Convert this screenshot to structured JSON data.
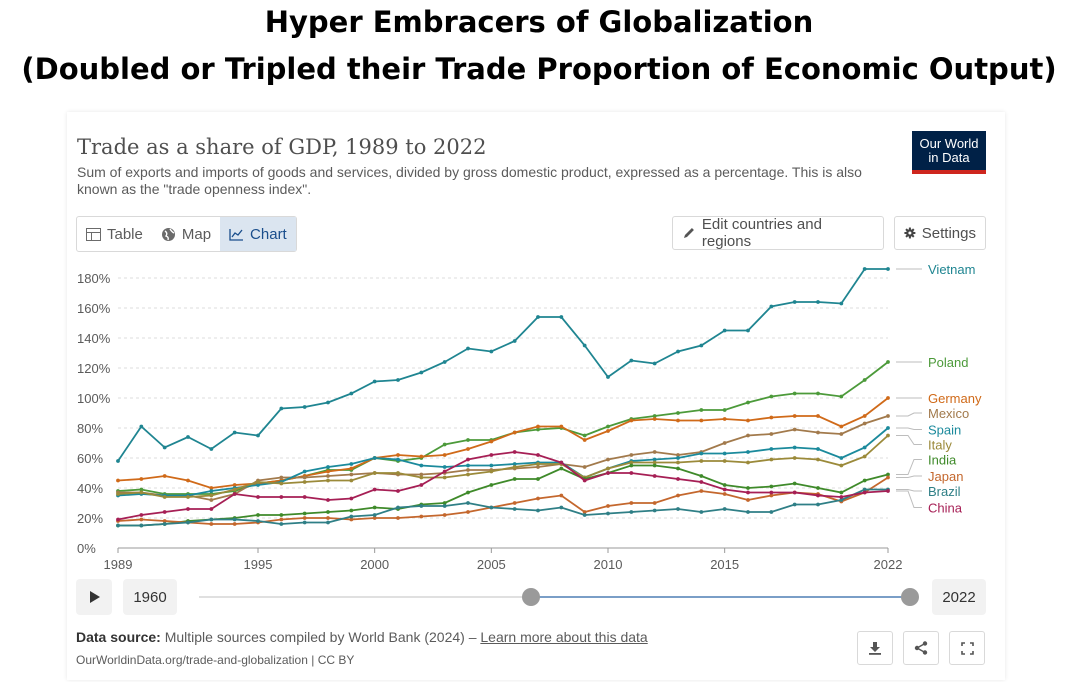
{
  "headline": {
    "line1": "Hyper Embracers of Globalization",
    "line2": "(Doubled or Tripled their Trade Proportion of Economic Output)"
  },
  "card": {
    "title": "Trade as a share of GDP, 1989 to 2022",
    "subtitle": "Sum of exports and imports of goods and services, divided by gross domestic product, expressed as a percentage. This is also known as the \"trade openness index\".",
    "logo_line1": "Our World",
    "logo_line2": "in Data"
  },
  "tabs": [
    {
      "label": "Table",
      "icon": "table-icon"
    },
    {
      "label": "Map",
      "icon": "globe-icon"
    },
    {
      "label": "Chart",
      "icon": "line-chart-icon"
    }
  ],
  "buttons": {
    "edit": "Edit countries and regions",
    "settings": "Settings"
  },
  "timeline": {
    "start": "1960",
    "end": "2022"
  },
  "footer": {
    "source_label": "Data source:",
    "source_text": "Multiple sources compiled by World Bank (2024) –",
    "learn_more": "Learn more about this data",
    "url": "OurWorldinData.org/trade-and-globalization | CC BY"
  },
  "colors": {
    "Vietnam": "#1f8591",
    "Poland": "#4c9a3a",
    "Germany": "#d06a19",
    "Mexico": "#a27a4c",
    "Spain": "#1b8a9c",
    "Italy": "#9b8a3a",
    "India": "#3f8a2a",
    "Japan": "#c4672d",
    "Brazil": "#2f7f86",
    "China": "#a61f55"
  },
  "chart_data": {
    "type": "line",
    "ylim": [
      0,
      180
    ],
    "yticks": [
      0,
      20,
      40,
      60,
      80,
      100,
      120,
      140,
      160,
      180
    ],
    "ytick_labels": [
      "0%",
      "20%",
      "40%",
      "60%",
      "80%",
      "100%",
      "120%",
      "140%",
      "160%",
      "180%"
    ],
    "xlim": [
      1989,
      2022
    ],
    "xticks": [
      1989,
      1995,
      2000,
      2005,
      2010,
      2015,
      2022
    ],
    "xtick_labels": [
      "1989",
      "1995",
      "2000",
      "2005",
      "2010",
      "2015",
      "2022"
    ],
    "x": [
      1989,
      1990,
      1991,
      1992,
      1993,
      1994,
      1995,
      1996,
      1997,
      1998,
      1999,
      2000,
      2001,
      2002,
      2003,
      2004,
      2005,
      2006,
      2007,
      2008,
      2009,
      2010,
      2011,
      2012,
      2013,
      2014,
      2015,
      2016,
      2017,
      2018,
      2019,
      2020,
      2021,
      2022
    ],
    "series": [
      {
        "name": "Vietnam",
        "values": [
          58,
          81,
          67,
          74,
          66,
          77,
          75,
          93,
          94,
          97,
          103,
          111,
          112,
          117,
          124,
          133,
          131,
          138,
          154,
          154,
          135,
          114,
          125,
          123,
          131,
          135,
          145,
          145,
          161,
          164,
          164,
          163,
          186,
          186
        ]
      },
      {
        "name": "Poland",
        "values": [
          38,
          39,
          36,
          36,
          36,
          38,
          43,
          45,
          48,
          52,
          52,
          60,
          58,
          60,
          69,
          72,
          72,
          77,
          79,
          80,
          75,
          81,
          86,
          88,
          90,
          92,
          92,
          97,
          101,
          103,
          103,
          101,
          112,
          124
        ]
      },
      {
        "name": "Germany",
        "values": [
          45,
          46,
          48,
          45,
          40,
          42,
          43,
          45,
          48,
          51,
          53,
          60,
          62,
          61,
          62,
          66,
          71,
          77,
          81,
          81,
          72,
          78,
          85,
          86,
          85,
          85,
          86,
          85,
          87,
          88,
          88,
          81,
          88,
          100
        ]
      },
      {
        "name": "Mexico",
        "values": [
          37,
          37,
          35,
          35,
          32,
          36,
          45,
          47,
          47,
          48,
          49,
          50,
          49,
          49,
          50,
          52,
          52,
          53,
          54,
          56,
          54,
          59,
          62,
          64,
          62,
          64,
          70,
          75,
          76,
          79,
          77,
          76,
          83,
          88
        ]
      },
      {
        "name": "Spain",
        "values": [
          35,
          36,
          35,
          35,
          38,
          40,
          42,
          44,
          51,
          54,
          56,
          60,
          59,
          55,
          54,
          55,
          55,
          56,
          57,
          57,
          47,
          53,
          58,
          59,
          60,
          63,
          63,
          64,
          66,
          67,
          66,
          60,
          67,
          80
        ]
      },
      {
        "name": "Italy",
        "values": [
          36,
          37,
          34,
          34,
          35,
          39,
          44,
          43,
          44,
          45,
          45,
          50,
          50,
          47,
          47,
          49,
          51,
          54,
          56,
          56,
          47,
          53,
          57,
          57,
          57,
          58,
          58,
          57,
          59,
          60,
          59,
          55,
          61,
          75
        ]
      },
      {
        "name": "India",
        "values": [
          15,
          15,
          16,
          18,
          19,
          20,
          22,
          22,
          23,
          24,
          25,
          27,
          26,
          29,
          30,
          37,
          42,
          46,
          46,
          53,
          46,
          50,
          55,
          55,
          53,
          48,
          42,
          40,
          41,
          43,
          40,
          37,
          45,
          49
        ]
      },
      {
        "name": "Japan",
        "values": [
          18,
          19,
          18,
          17,
          16,
          16,
          17,
          19,
          20,
          20,
          19,
          20,
          20,
          21,
          22,
          24,
          27,
          30,
          33,
          35,
          24,
          28,
          30,
          30,
          35,
          38,
          36,
          32,
          35,
          37,
          36,
          31,
          37,
          47
        ]
      },
      {
        "name": "Brazil",
        "values": [
          15,
          15,
          16,
          17,
          19,
          19,
          18,
          16,
          17,
          17,
          21,
          22,
          27,
          28,
          28,
          30,
          27,
          26,
          25,
          27,
          22,
          23,
          24,
          25,
          26,
          24,
          26,
          24,
          24,
          29,
          29,
          32,
          39,
          39
        ]
      },
      {
        "name": "China",
        "values": [
          19,
          22,
          24,
          26,
          26,
          36,
          34,
          34,
          34,
          32,
          33,
          39,
          38,
          42,
          51,
          59,
          62,
          64,
          62,
          57,
          45,
          50,
          50,
          48,
          46,
          44,
          39,
          37,
          37,
          37,
          35,
          34,
          37,
          38
        ]
      }
    ],
    "labels": [
      {
        "name": "Vietnam",
        "label_y": 186
      },
      {
        "name": "Poland",
        "label_y": 124
      },
      {
        "name": "Germany",
        "label_y": 100
      },
      {
        "name": "Mexico",
        "label_y": 90
      },
      {
        "name": "Spain",
        "label_y": 79
      },
      {
        "name": "Italy",
        "label_y": 69
      },
      {
        "name": "India",
        "label_y": 59
      },
      {
        "name": "Japan",
        "label_y": 48
      },
      {
        "name": "Brazil",
        "label_y": 38
      },
      {
        "name": "China",
        "label_y": 27
      }
    ]
  }
}
